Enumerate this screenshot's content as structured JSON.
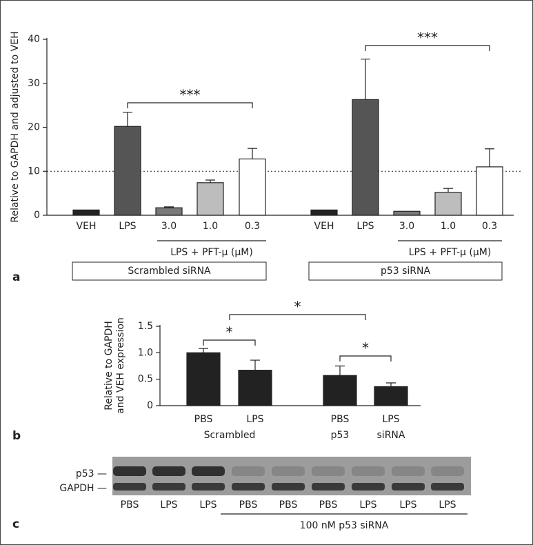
{
  "chart_data": [
    {
      "type": "bar",
      "panel": "a",
      "ylabel": "Relative to GAPDH and adjusted to VEH",
      "categories": [
        "VEH",
        "LPS",
        "3.0",
        "1.0",
        "0.3",
        "VEH",
        "LPS",
        "3.0",
        "1.0",
        "0.3"
      ],
      "values": [
        1.2,
        20.2,
        1.7,
        7.4,
        12.8,
        1.2,
        26.3,
        0.9,
        5.2,
        11.0
      ],
      "errors": [
        null,
        3.2,
        0.2,
        0.6,
        2.4,
        null,
        9.2,
        null,
        0.9,
        4.1
      ],
      "colors": [
        "#222222",
        "#555555",
        "#7a7a7a",
        "#bdbdbd",
        "#ffffff",
        "#222222",
        "#555555",
        "#7a7a7a",
        "#bdbdbd",
        "#ffffff"
      ],
      "ylim": [
        0,
        40
      ],
      "yticks": [
        0,
        10,
        20,
        30,
        40
      ],
      "reference_line": 10,
      "treatment_labels": [
        "LPS  + PFT-μ (μM)",
        "LPS  + PFT-μ (μM)"
      ],
      "group_labels": [
        "Scrambled siRNA",
        "p53 siRNA"
      ],
      "annotations": [
        "***",
        "***"
      ]
    },
    {
      "type": "bar",
      "panel": "b",
      "ylabel": [
        "Relative to GAPDH",
        "and VEH expression"
      ],
      "categories": [
        "PBS",
        "LPS",
        "PBS",
        "LPS"
      ],
      "sublabels": [
        "Scrambled",
        "p53",
        "siRNA"
      ],
      "values": [
        1.0,
        0.67,
        0.57,
        0.36
      ],
      "errors": [
        0.08,
        0.19,
        0.18,
        0.07
      ],
      "color": "#222222",
      "ylim": [
        0,
        1.5
      ],
      "yticks": [
        0,
        0.5,
        {
          "value": 1,
          "label": "1.0"
        },
        1.5
      ],
      "annotations": [
        "*",
        "*",
        "*"
      ]
    }
  ],
  "blot": {
    "panel": "c",
    "bands": [
      "p53 —",
      "GAPDH —"
    ],
    "lanes": [
      "PBS",
      "LPS",
      "LPS",
      "PBS",
      "PBS",
      "PBS",
      "LPS",
      "LPS",
      "LPS"
    ],
    "treatment": "100 nM p53 siRNA"
  }
}
